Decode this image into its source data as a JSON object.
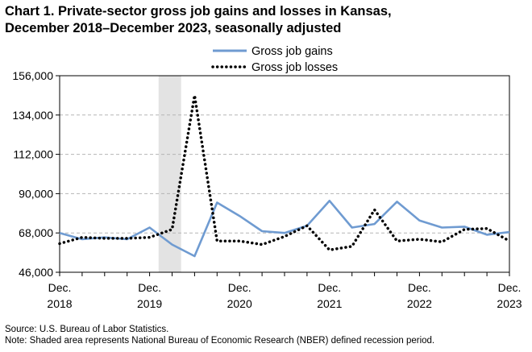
{
  "chart_data": {
    "type": "line",
    "title": "Chart 1. Private-sector gross job gains and losses in Kansas,",
    "subtitle": "December 2018–December 2023, seasonally adjusted",
    "ylim": [
      46000,
      156000
    ],
    "yticks": [
      46000,
      68000,
      90000,
      112000,
      134000,
      156000
    ],
    "ytick_labels": [
      "46,000",
      "68,000",
      "90,000",
      "112,000",
      "134,000",
      "156,000"
    ],
    "x": [
      "Dec 2018",
      "Mar 2019",
      "Jun 2019",
      "Sep 2019",
      "Dec 2019",
      "Mar 2020",
      "Jun 2020",
      "Sep 2020",
      "Dec 2020",
      "Mar 2021",
      "Jun 2021",
      "Sep 2021",
      "Dec 2021",
      "Mar 2022",
      "Jun 2022",
      "Sep 2022",
      "Dec 2022",
      "Mar 2023",
      "Jun 2023",
      "Sep 2023",
      "Dec 2023"
    ],
    "xtick_labels": [
      {
        "index": 0,
        "line1": "Dec.",
        "line2": "2018"
      },
      {
        "index": 4,
        "line1": "Dec.",
        "line2": "2019"
      },
      {
        "index": 8,
        "line1": "Dec.",
        "line2": "2020"
      },
      {
        "index": 12,
        "line1": "Dec.",
        "line2": "2021"
      },
      {
        "index": 16,
        "line1": "Dec.",
        "line2": "2022"
      },
      {
        "index": 20,
        "line1": "Dec.",
        "line2": "2023"
      }
    ],
    "series": [
      {
        "name": "Gross job gains",
        "color": "#6f9bd1",
        "style": "solid",
        "values": [
          68000,
          64500,
          65500,
          64500,
          71000,
          61500,
          55000,
          85000,
          77500,
          69000,
          68000,
          72000,
          86000,
          71000,
          73000,
          85500,
          75000,
          71000,
          71500,
          67000,
          68500
        ]
      },
      {
        "name": "Gross job losses",
        "color": "#000000",
        "style": "dotted",
        "values": [
          62000,
          65500,
          65000,
          65000,
          65500,
          70000,
          145000,
          63500,
          63500,
          61500,
          66000,
          72000,
          58500,
          60500,
          81000,
          63500,
          64500,
          63000,
          70000,
          70500,
          63500
        ]
      }
    ],
    "recession": {
      "start_index": 4.4,
      "end_index": 5.4,
      "color": "#e3e3e3"
    },
    "grid": true,
    "legend": "top-center"
  },
  "footnotes": {
    "source": "Source: U.S. Bureau of Labor Statistics.",
    "note": "Note: Shaded area represents National Bureau of Economic Research (NBER) defined  recession period."
  }
}
